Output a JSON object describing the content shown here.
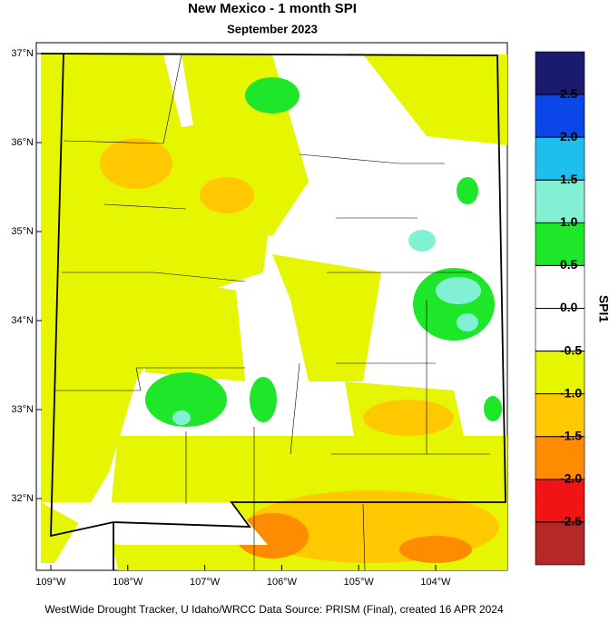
{
  "title": "New Mexico - 1 month SPI",
  "subtitle": "September 2023",
  "footer": "WestWide Drought Tracker, U Idaho/WRCC Data Source: PRISM (Final), created 16 APR 2024",
  "lat_ticks": [
    {
      "value": 37,
      "label": "37°N"
    },
    {
      "value": 36,
      "label": "36°N"
    },
    {
      "value": 35,
      "label": "35°N"
    },
    {
      "value": 34,
      "label": "34°N"
    },
    {
      "value": 33,
      "label": "33°N"
    },
    {
      "value": 32,
      "label": "32°N"
    }
  ],
  "lon_ticks": [
    {
      "value": -109,
      "label": "109°W"
    },
    {
      "value": -108,
      "label": "108°W"
    },
    {
      "value": -107,
      "label": "107°W"
    },
    {
      "value": -106,
      "label": "106°W"
    },
    {
      "value": -105,
      "label": "105°W"
    },
    {
      "value": -104,
      "label": "104°W"
    }
  ],
  "colorbar": {
    "label": "SPI1",
    "colors": [
      "#1a1a6e",
      "#0a46e8",
      "#1ebeef",
      "#82f0d2",
      "#1ee628",
      "#ffffff",
      "#ffffff",
      "#e6f500",
      "#ffc800",
      "#ff8c00",
      "#f01414",
      "#b42828"
    ],
    "ticks": [
      2.5,
      {
        "value": 2,
        "label": "2.0"
      },
      1.5,
      {
        "value": 1,
        "label": "1.0"
      },
      0.5,
      {
        "value": 0,
        "label": "0.0"
      },
      -0.5,
      {
        "value": -1,
        "label": "-1.0"
      },
      -1.5,
      {
        "value": -2,
        "label": "-2.0"
      },
      -2.5
    ]
  }
}
